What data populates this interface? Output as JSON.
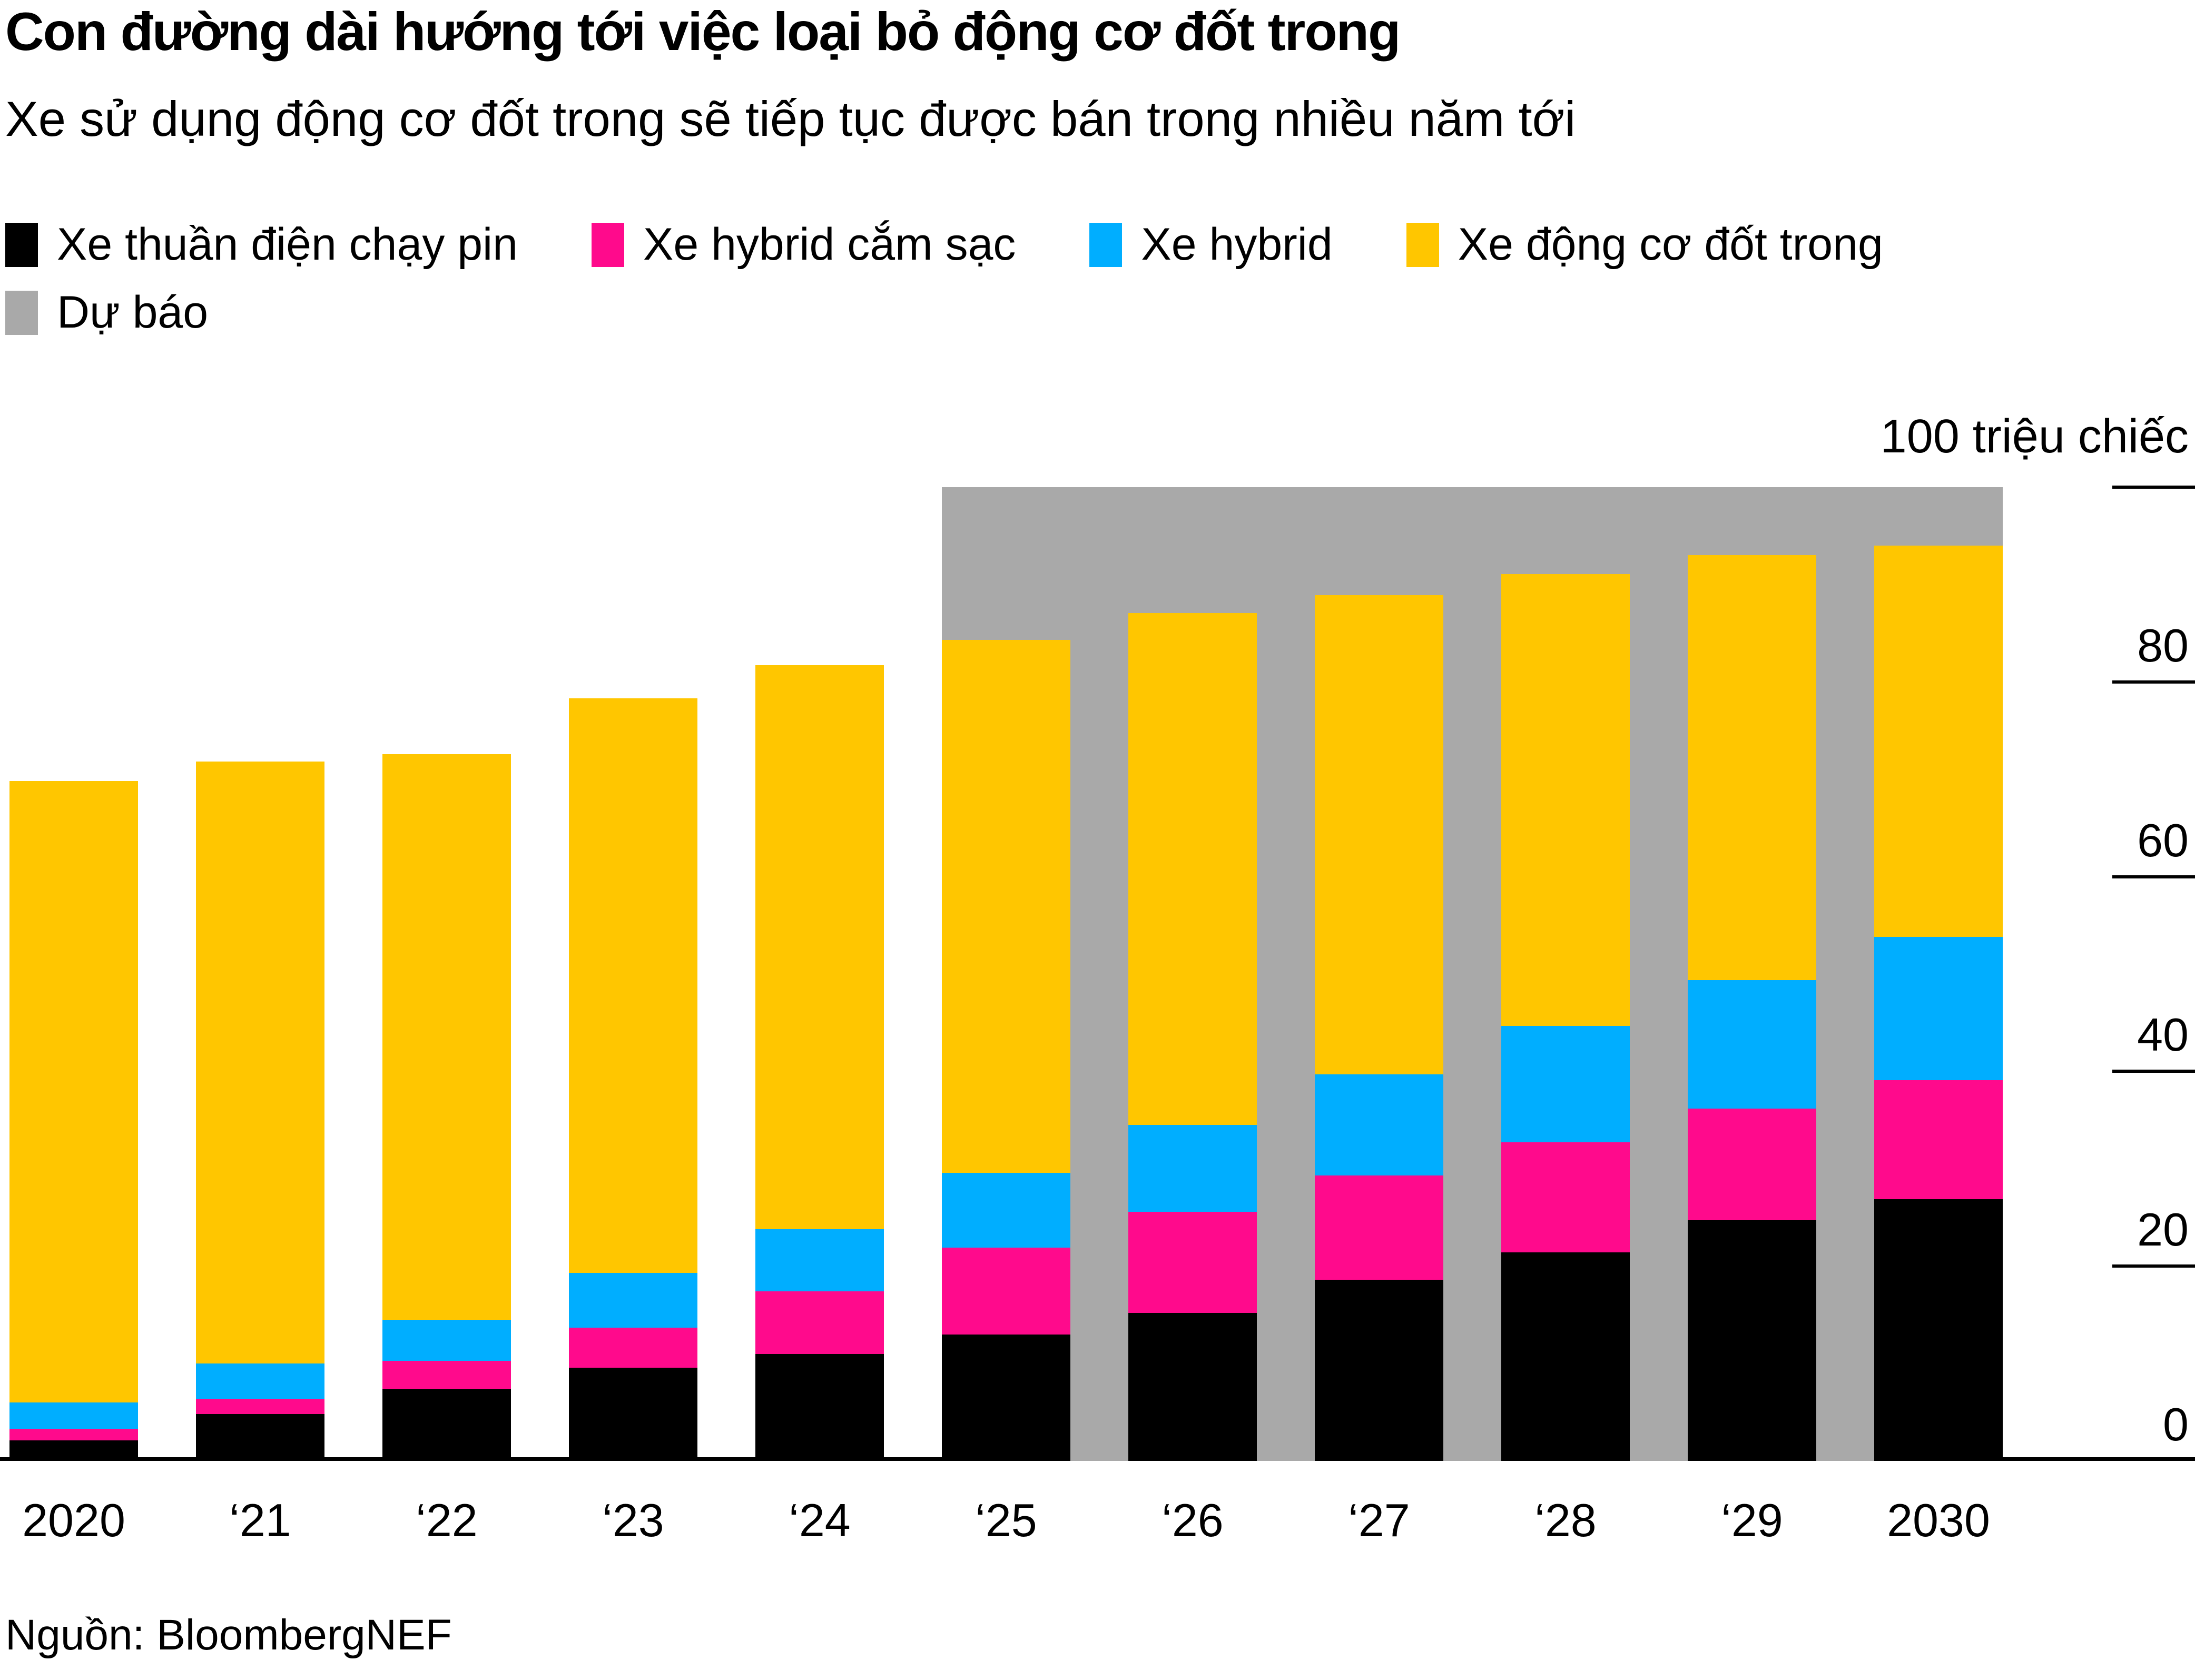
{
  "header": {
    "title": "Con đường dài hướng tới việc loại bỏ động cơ đốt trong",
    "subtitle": "Xe sử dụng động cơ đốt trong sẽ tiếp tục được bán trong nhiều năm tới"
  },
  "legend": {
    "rows": [
      [
        {
          "key": "bev",
          "label": "Xe thuần điện chạy pin",
          "color": "#000000"
        },
        {
          "key": "phev",
          "label": "Xe hybrid cắm sạc",
          "color": "#ff0a8c"
        },
        {
          "key": "hev",
          "label": "Xe hybrid",
          "color": "#00aeff"
        },
        {
          "key": "ice",
          "label": "Xe động cơ đốt trong",
          "color": "#ffc600"
        }
      ],
      [
        {
          "key": "forecast",
          "label": "Dự báo",
          "color": "#a9a9a9"
        }
      ]
    ]
  },
  "axis": {
    "unit_label": "100 triệu chiếc",
    "tick_values": [
      80,
      60,
      40,
      20,
      0
    ]
  },
  "source": "Nguồn: BloombergNEF",
  "colors": {
    "bev": "#000000",
    "phev": "#ff0a8c",
    "hev": "#00aeff",
    "ice": "#ffc600",
    "forecast_band": "#a9a9a9",
    "axis_line": "#000000",
    "background": "#ffffff"
  },
  "chart_data": {
    "type": "bar",
    "stacked": true,
    "title": "Con đường dài hướng tới việc loại bỏ động cơ đốt trong",
    "subtitle": "Xe sử dụng động cơ đốt trong sẽ tiếp tục được bán trong nhiều năm tới",
    "unit": "triệu chiếc (million vehicles)",
    "ylim": [
      0,
      100
    ],
    "yticks": [
      100,
      80,
      60,
      40,
      20,
      0
    ],
    "grid": false,
    "legend_position": "top",
    "categories": [
      "2020",
      "‘21",
      "‘22",
      "‘23",
      "‘24",
      "‘25",
      "‘26",
      "‘27",
      "‘28",
      "‘29",
      "2030"
    ],
    "series": [
      {
        "name": "Xe thuần điện chạy pin",
        "key": "bev",
        "color": "#000000",
        "values": [
          2.1,
          4.8,
          7.4,
          9.6,
          11.0,
          13.0,
          15.2,
          18.6,
          21.4,
          24.7,
          26.9
        ]
      },
      {
        "name": "Xe hybrid cắm sạc",
        "key": "phev",
        "color": "#ff0a8c",
        "values": [
          1.2,
          1.6,
          2.9,
          4.1,
          6.4,
          8.9,
          10.4,
          10.7,
          11.3,
          11.5,
          12.2
        ]
      },
      {
        "name": "Xe hybrid",
        "key": "hev",
        "color": "#00aeff",
        "values": [
          2.7,
          3.6,
          4.2,
          5.6,
          6.4,
          7.7,
          8.9,
          10.4,
          12.0,
          13.2,
          14.7
        ]
      },
      {
        "name": "Xe động cơ đốt trong",
        "key": "ice",
        "color": "#ffc600",
        "values": [
          63.8,
          61.8,
          58.1,
          59.0,
          57.9,
          54.7,
          52.6,
          49.2,
          46.4,
          43.6,
          40.2
        ]
      }
    ],
    "totals": [
      69.8,
      71.8,
      72.6,
      78.3,
      81.7,
      84.3,
      87.2,
      88.9,
      91.1,
      93.0,
      94.0
    ],
    "forecast": {
      "label": "Dự báo",
      "color": "#a9a9a9",
      "start_category": "‘25",
      "start_index": 5
    }
  }
}
